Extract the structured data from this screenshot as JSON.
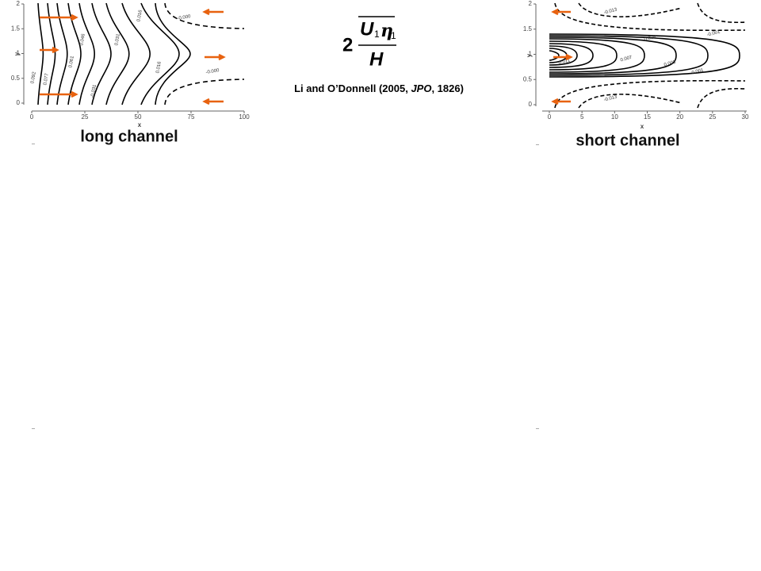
{
  "formula": {
    "coefficient": "2",
    "numerator_symbol": "U",
    "numerator_subscript": "1",
    "eta_symbol": "η",
    "eta_subscript": "1",
    "denominator": "H"
  },
  "citation": {
    "before": "Li and O’Donnell (2005, ",
    "journal": "JPO",
    "after": ", 1826)"
  },
  "left_panel": {
    "caption": "long channel",
    "x_label": "x",
    "y_label": "y",
    "x_ticks": [
      "0",
      "25",
      "50",
      "75",
      "100"
    ],
    "y_ticks": [
      "0",
      "0.5",
      "1",
      "1.5",
      "2"
    ],
    "contour_labels": [
      "0.092",
      "0.077",
      "0.061",
      "0.046",
      "0.031",
      "0.016",
      "0.016",
      "-0.000",
      "-0.000",
      "-0.031"
    ]
  },
  "right_panel": {
    "caption": "short channel",
    "x_label": "x",
    "y_label": "y",
    "x_ticks": [
      "0",
      "5",
      "10",
      "15",
      "20",
      "25",
      "30"
    ],
    "y_ticks": [
      "0",
      "0.5",
      "1",
      "1.5",
      "2"
    ],
    "contour_labels": [
      "-0.013",
      "0.009",
      "-0.001",
      "0.011",
      "0.007",
      "0.003",
      "0.001",
      "-0.013"
    ]
  }
}
